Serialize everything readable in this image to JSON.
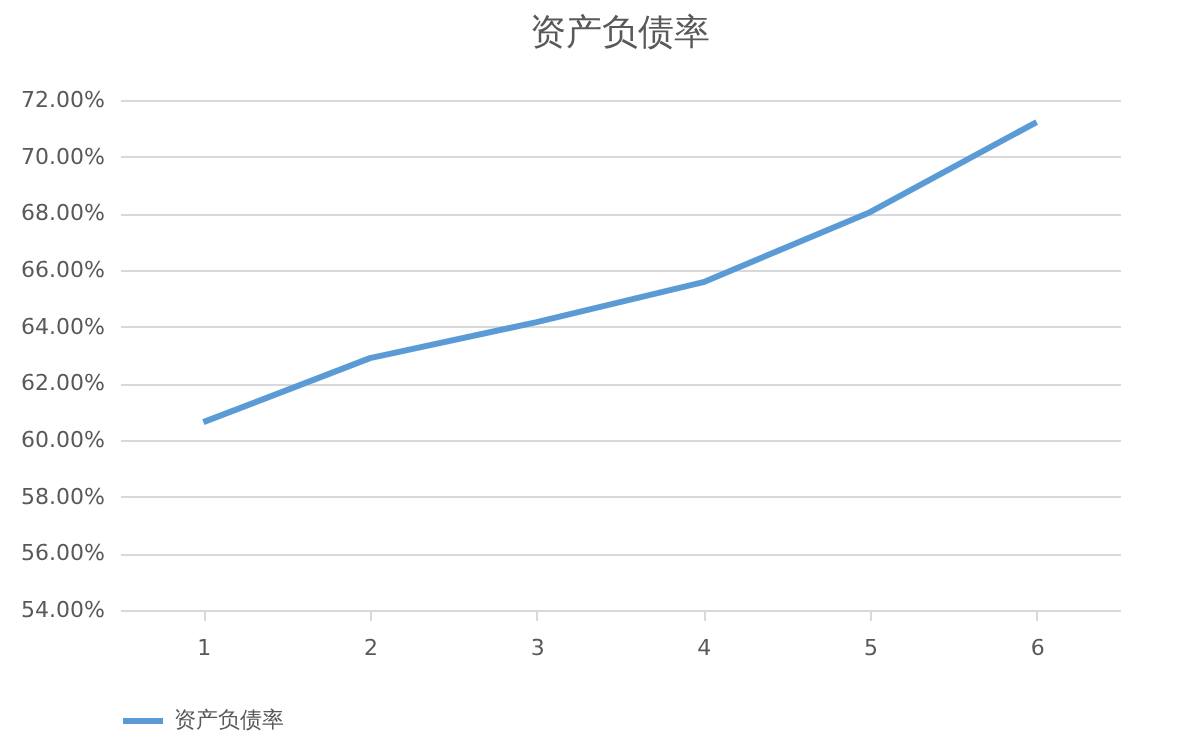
{
  "chart_data": {
    "type": "line",
    "title": "资产负债率",
    "categories": [
      "1",
      "2",
      "3",
      "4",
      "5",
      "6"
    ],
    "series": [
      {
        "name": "资产负债率",
        "color": "#5b9bd5",
        "values": [
          60.63,
          62.89,
          64.16,
          65.57,
          68.04,
          71.22
        ]
      }
    ],
    "ylim": [
      54,
      72
    ],
    "yticks": [
      {
        "value": 54,
        "label": "54.00%"
      },
      {
        "value": 56,
        "label": "56.00%"
      },
      {
        "value": 58,
        "label": "58.00%"
      },
      {
        "value": 60,
        "label": "60.00%"
      },
      {
        "value": 62,
        "label": "62.00%"
      },
      {
        "value": 64,
        "label": "64.00%"
      },
      {
        "value": 66,
        "label": "66.00%"
      },
      {
        "value": 68,
        "label": "68.00%"
      },
      {
        "value": 70,
        "label": "70.00%"
      },
      {
        "value": 72,
        "label": "72.00%"
      }
    ],
    "grid": "y",
    "legend": "bottom",
    "marker": "none",
    "line_style": "solid"
  }
}
